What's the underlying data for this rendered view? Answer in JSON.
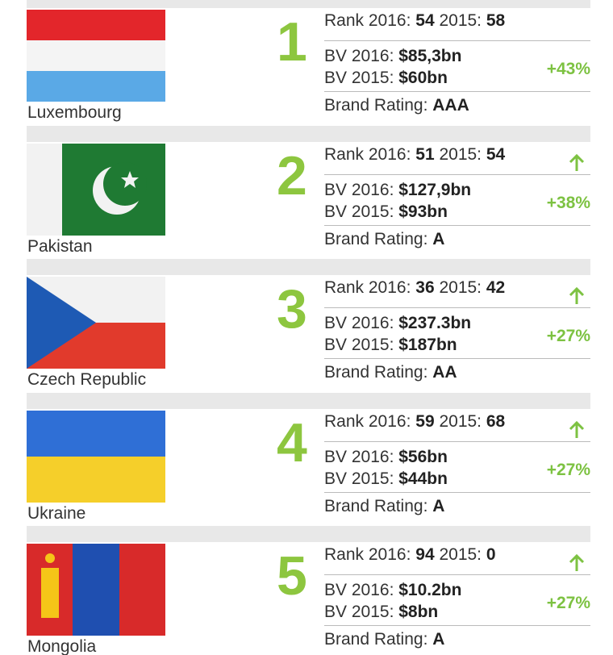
{
  "labels": {
    "rank_2016": "Rank 2016:",
    "rank_2015": "2015:",
    "bv_2016": "BV 2016:",
    "bv_2015": "BV 2015:",
    "rating": "Brand Rating:"
  },
  "entries": [
    {
      "country": "Luxembourg",
      "rank": 1,
      "rank_2016": 54,
      "rank_2015": 58,
      "bv_2016": "$85,3bn",
      "bv_2015": "$60bn",
      "change": "+43%",
      "rating": "AAA"
    },
    {
      "country": "Pakistan",
      "rank": 2,
      "rank_2016": 51,
      "rank_2015": 54,
      "bv_2016": "$127,9bn",
      "bv_2015": "$93bn",
      "change": "+38%",
      "rating": "A"
    },
    {
      "country": "Czech Republic",
      "rank": 3,
      "rank_2016": 36,
      "rank_2015": 42,
      "bv_2016": "$237.3bn",
      "bv_2015": "$187bn",
      "change": "+27%",
      "rating": "AA"
    },
    {
      "country": "Ukraine",
      "rank": 4,
      "rank_2016": 59,
      "rank_2015": 68,
      "bv_2016": "$56bn",
      "bv_2015": "$44bn",
      "change": "+27%",
      "rating": "A"
    },
    {
      "country": "Mongolia",
      "rank": 5,
      "rank_2016": 94,
      "rank_2015": 0,
      "bv_2016": "$10.2bn",
      "bv_2015": "$8bn",
      "change": "+27%",
      "rating": "A"
    }
  ]
}
